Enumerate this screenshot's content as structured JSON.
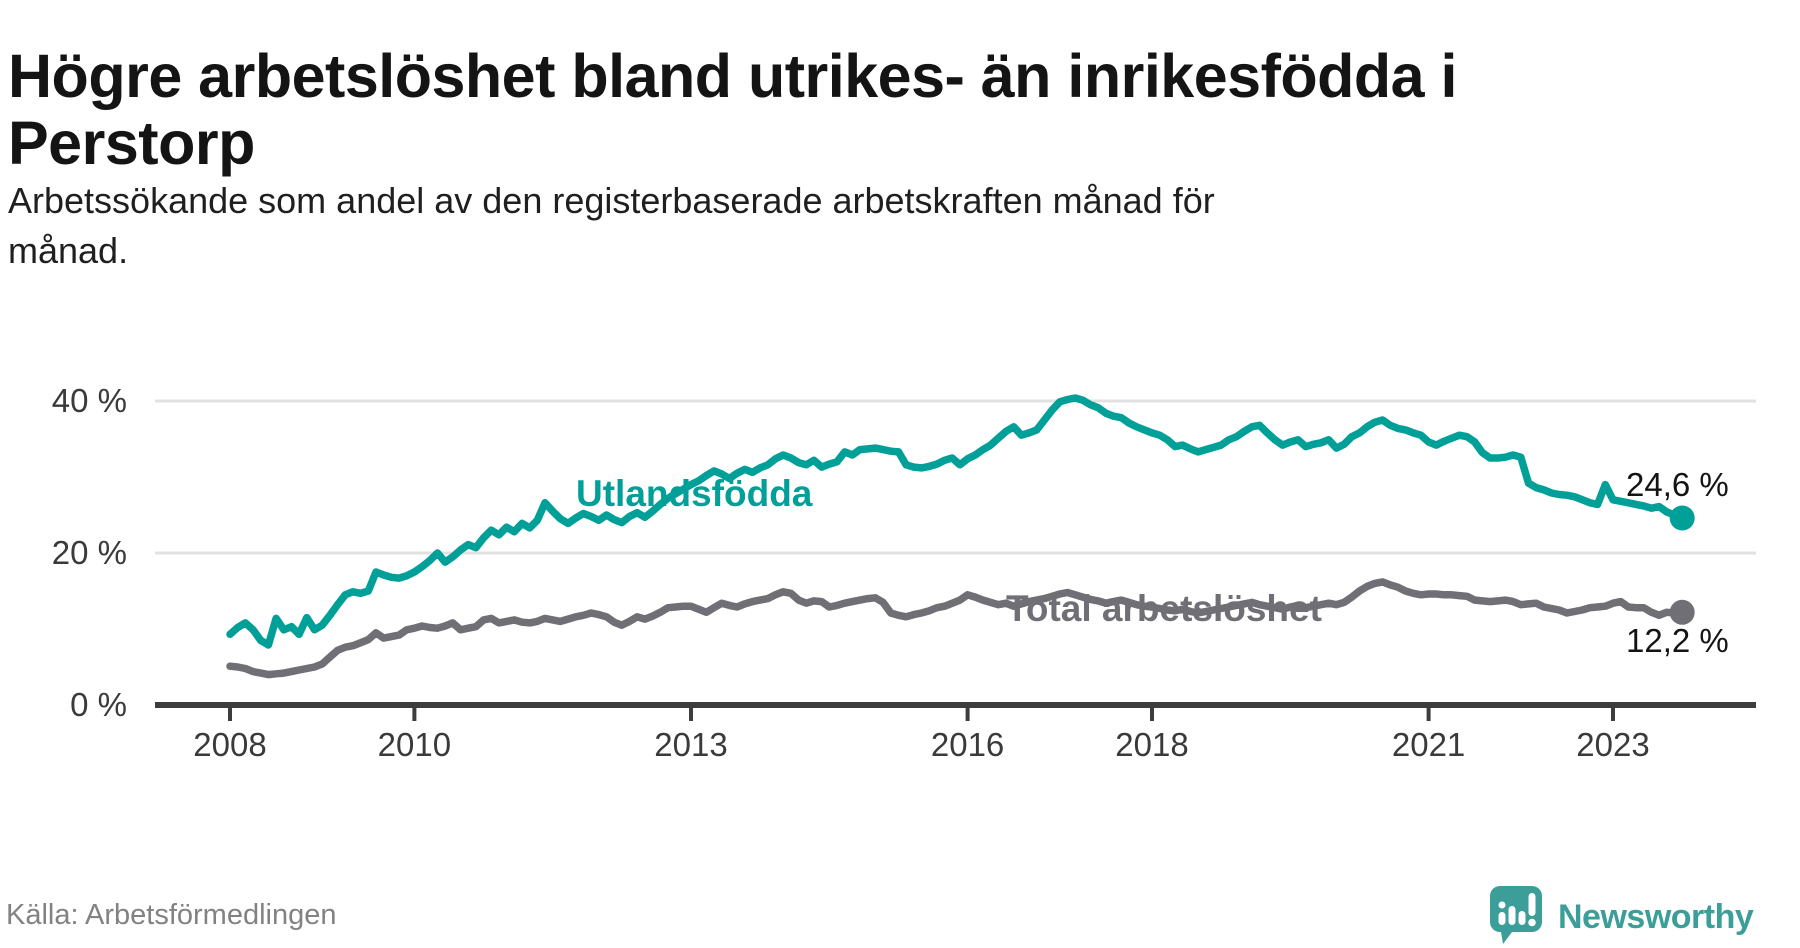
{
  "header": {
    "title_lines": [
      "Högre arbetslöshet bland utrikes- än inrikesfödda i",
      "Perstorp"
    ],
    "subtitle_lines": [
      "Arbetssökande som andel av den registerbaserade arbetskraften månad för",
      "månad."
    ]
  },
  "chart_data": {
    "type": "line",
    "x_start_year": 2008,
    "points_per_year": 12,
    "x_tick_years": [
      2008,
      2010,
      2013,
      2016,
      2018,
      2021,
      2023
    ],
    "y_ticks": [
      {
        "value": 40,
        "label": "40 %"
      },
      {
        "value": 20,
        "label": "20 %"
      },
      {
        "value": 0,
        "label": "0 %"
      }
    ],
    "ylim": [
      0,
      46
    ],
    "grid": "horizontal-only",
    "legend_position": "inline-labels",
    "series": [
      {
        "name": "Utlandsfödda",
        "color": "#00a099",
        "end_label": "24,6 %",
        "end_value": 24.6,
        "values": [
          9.3,
          10.2,
          10.8,
          9.9,
          8.5,
          7.9,
          11.4,
          9.9,
          10.3,
          9.3,
          11.5,
          9.9,
          10.5,
          11.8,
          13.2,
          14.5,
          14.9,
          14.7,
          15.0,
          17.5,
          17.1,
          16.8,
          16.7,
          17.0,
          17.5,
          18.2,
          19.0,
          20.0,
          18.8,
          19.5,
          20.4,
          21.1,
          20.7,
          22.0,
          23.0,
          22.4,
          23.4,
          22.8,
          23.9,
          23.3,
          24.3,
          26.6,
          25.5,
          24.5,
          23.9,
          24.6,
          25.2,
          24.8,
          24.3,
          25.0,
          24.4,
          24.0,
          24.8,
          25.3,
          24.7,
          25.5,
          26.4,
          27.2,
          27.8,
          28.4,
          29.0,
          29.5,
          30.2,
          30.8,
          30.4,
          29.8,
          30.5,
          31.0,
          30.6,
          31.2,
          31.6,
          32.4,
          32.9,
          32.5,
          31.9,
          31.6,
          32.2,
          31.3,
          31.7,
          32.0,
          33.3,
          32.9,
          33.6,
          33.7,
          33.8,
          33.6,
          33.4,
          33.3,
          31.6,
          31.3,
          31.2,
          31.4,
          31.7,
          32.2,
          32.5,
          31.6,
          32.4,
          32.9,
          33.6,
          34.2,
          35.1,
          36.0,
          36.6,
          35.5,
          35.8,
          36.2,
          37.5,
          38.8,
          39.9,
          40.2,
          40.4,
          40.1,
          39.5,
          39.1,
          38.4,
          38.0,
          37.8,
          37.1,
          36.6,
          36.2,
          35.8,
          35.5,
          34.9,
          34.0,
          34.2,
          33.7,
          33.3,
          33.6,
          33.9,
          34.2,
          34.9,
          35.3,
          36.0,
          36.6,
          36.8,
          35.8,
          34.9,
          34.2,
          34.6,
          34.9,
          34.0,
          34.3,
          34.5,
          34.9,
          33.8,
          34.3,
          35.3,
          35.8,
          36.6,
          37.2,
          37.5,
          36.8,
          36.4,
          36.2,
          35.8,
          35.5,
          34.6,
          34.2,
          34.7,
          35.1,
          35.5,
          35.3,
          34.6,
          33.2,
          32.5,
          32.5,
          32.6,
          32.9,
          32.6,
          29.2,
          28.6,
          28.3,
          27.9,
          27.7,
          27.6,
          27.4,
          27.0,
          26.6,
          26.4,
          29.0,
          27.0,
          26.8,
          26.6,
          26.4,
          26.2,
          25.9,
          26.1,
          25.4,
          25.0,
          24.6
        ]
      },
      {
        "name": "Total arbetslöshet",
        "color": "#716f76",
        "end_label": "12,2 %",
        "end_value": 12.2,
        "values": [
          5.1,
          5.0,
          4.8,
          4.4,
          4.2,
          4.0,
          4.1,
          4.2,
          4.4,
          4.6,
          4.8,
          5.0,
          5.4,
          6.3,
          7.2,
          7.6,
          7.8,
          8.2,
          8.6,
          9.5,
          8.8,
          9.0,
          9.2,
          9.9,
          10.1,
          10.4,
          10.2,
          10.1,
          10.4,
          10.8,
          9.9,
          10.1,
          10.3,
          11.2,
          11.4,
          10.8,
          11.0,
          11.2,
          10.9,
          10.8,
          11.0,
          11.4,
          11.2,
          11.0,
          11.3,
          11.6,
          11.8,
          12.1,
          11.9,
          11.6,
          10.9,
          10.5,
          11.0,
          11.6,
          11.3,
          11.7,
          12.2,
          12.8,
          12.9,
          13.0,
          13.0,
          12.6,
          12.2,
          12.8,
          13.4,
          13.1,
          12.9,
          13.3,
          13.6,
          13.8,
          14.0,
          14.5,
          14.9,
          14.7,
          13.8,
          13.4,
          13.7,
          13.6,
          12.9,
          13.1,
          13.4,
          13.6,
          13.8,
          14.0,
          14.1,
          13.5,
          12.1,
          11.8,
          11.6,
          11.9,
          12.1,
          12.4,
          12.8,
          13.0,
          13.4,
          13.8,
          14.5,
          14.2,
          13.8,
          13.5,
          13.2,
          13.4,
          13.0,
          13.3,
          13.6,
          13.8,
          14.0,
          14.3,
          14.6,
          14.8,
          14.5,
          14.2,
          13.9,
          13.7,
          13.4,
          13.6,
          13.8,
          13.5,
          13.2,
          13.0,
          12.9,
          12.7,
          12.5,
          12.4,
          12.6,
          12.3,
          12.1,
          12.3,
          12.5,
          12.7,
          12.9,
          13.1,
          13.3,
          13.5,
          13.2,
          13.0,
          12.8,
          12.6,
          12.9,
          13.1,
          12.8,
          13.0,
          13.2,
          13.4,
          13.2,
          13.5,
          14.2,
          15.0,
          15.6,
          16.0,
          16.2,
          15.8,
          15.5,
          15.0,
          14.7,
          14.5,
          14.6,
          14.6,
          14.5,
          14.5,
          14.4,
          14.3,
          13.8,
          13.7,
          13.6,
          13.7,
          13.8,
          13.6,
          13.2,
          13.3,
          13.4,
          12.9,
          12.7,
          12.5,
          12.1,
          12.3,
          12.5,
          12.8,
          12.9,
          13.0,
          13.4,
          13.6,
          12.9,
          12.8,
          12.8,
          12.2,
          11.8,
          12.2,
          12.1,
          12.2
        ]
      }
    ]
  },
  "footer": {
    "source": "Källa: Arbetsförmedlingen",
    "brand": "Newsworthy",
    "brand_color": "#3c9e99"
  }
}
